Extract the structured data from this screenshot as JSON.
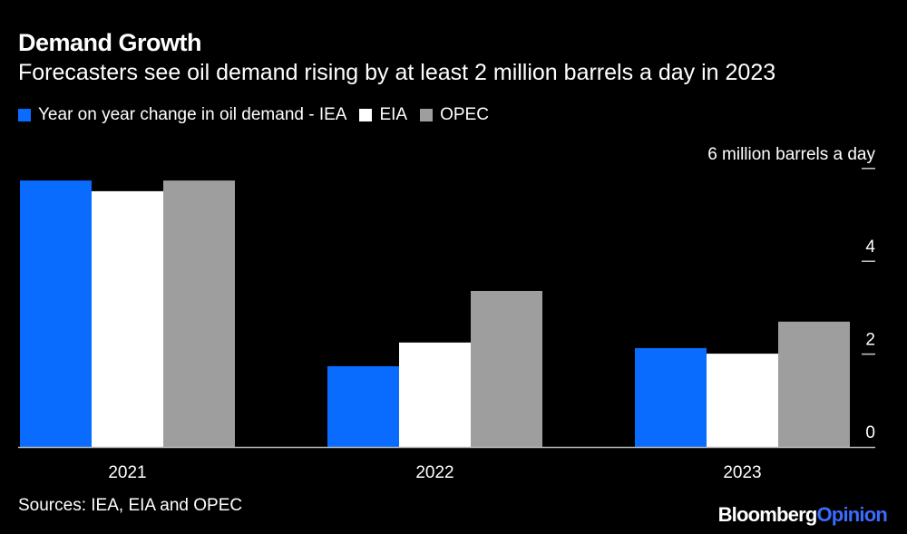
{
  "title": "Demand Growth",
  "subtitle": "Forecasters see oil demand rising by at least 2 million barrels a day in 2023",
  "source": "Sources: IEA, EIA and OPEC",
  "logo": {
    "brand": "Bloomberg",
    "section": "Opinion"
  },
  "chart_data": {
    "type": "bar",
    "categories": [
      "2021",
      "2022",
      "2023"
    ],
    "series": [
      {
        "name": "Year on year change in oil demand - IEA",
        "color": "#0a6cff",
        "values": [
          5.74,
          1.74,
          2.13
        ]
      },
      {
        "name": "EIA",
        "color": "#ffffff",
        "values": [
          5.51,
          2.25,
          2.01
        ]
      },
      {
        "name": "OPEC",
        "color": "#9e9e9e",
        "values": [
          5.74,
          3.36,
          2.7
        ]
      }
    ],
    "ylabel": "6 million barrels a day",
    "yticks": [
      "0",
      "2",
      "4",
      "6 million barrels a day"
    ],
    "ytick_values": [
      0,
      2,
      4,
      6
    ],
    "ylim": [
      0,
      6
    ],
    "grid": false,
    "legend": "top-left"
  }
}
